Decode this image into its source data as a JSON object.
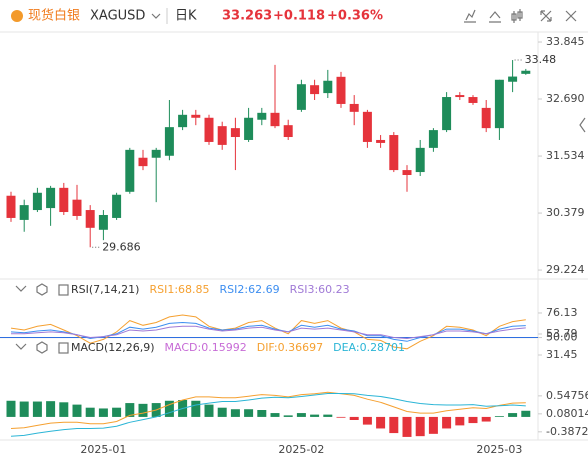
{
  "header": {
    "name": "现货白银",
    "symbol": "XAGUSD",
    "period": "日K",
    "change": "+0.118",
    "change_pct": "+0.36%"
  },
  "chart_data": [
    {
      "type": "candlestick",
      "up_color": "#1e8c5a",
      "down_color": "#e5333b",
      "categories": [
        null,
        null,
        null,
        null,
        null,
        null,
        null,
        "2025-01",
        null,
        null,
        null,
        null,
        null,
        null,
        null,
        null,
        null,
        null,
        null,
        null,
        null,
        null,
        "2025-02",
        null,
        null,
        null,
        null,
        null,
        null,
        null,
        null,
        null,
        null,
        null,
        null,
        null,
        null,
        "2025-03",
        null,
        null
      ],
      "open": [
        30.73,
        30.24,
        30.44,
        30.48,
        30.89,
        30.65,
        30.44,
        30.04,
        30.28,
        30.81,
        31.5,
        31.5,
        31.54,
        32.12,
        32.37,
        32.31,
        32.14,
        32.1,
        31.86,
        32.27,
        32.41,
        32.16,
        32.47,
        32.97,
        32.81,
        33.14,
        32.59,
        32.43,
        31.86,
        31.96,
        31.25,
        31.21,
        31.7,
        32.06,
        32.77,
        32.73,
        32.51,
        32.1,
        33.04,
        33.2
      ],
      "high": [
        30.81,
        30.65,
        30.89,
        30.93,
        30.99,
        30.95,
        30.54,
        30.44,
        30.79,
        31.7,
        31.66,
        31.7,
        32.67,
        32.47,
        32.47,
        32.37,
        32.23,
        32.31,
        32.51,
        32.51,
        33.383,
        32.27,
        33.08,
        33.08,
        33.28,
        33.24,
        32.77,
        32.47,
        31.96,
        32.02,
        31.35,
        31.86,
        32.1,
        32.83,
        32.83,
        32.77,
        32.67,
        33.08,
        33.48,
        33.3
      ],
      "low": [
        30.2,
        30.0,
        30.4,
        30.12,
        30.34,
        30.24,
        29.686,
        29.83,
        30.24,
        30.77,
        31.25,
        30.6,
        31.45,
        32.06,
        32.16,
        31.76,
        31.66,
        31.25,
        31.82,
        32.16,
        32.1,
        31.86,
        32.43,
        32.67,
        32.71,
        32.51,
        32.16,
        31.7,
        31.7,
        31.21,
        30.81,
        31.13,
        31.62,
        32.02,
        32.67,
        32.57,
        32.02,
        31.86,
        32.83,
        33.18
      ],
      "close": [
        30.28,
        30.54,
        30.79,
        30.89,
        30.4,
        30.32,
        30.08,
        30.34,
        30.75,
        31.66,
        31.33,
        31.66,
        32.12,
        32.37,
        32.31,
        31.82,
        31.76,
        31.92,
        32.31,
        32.41,
        32.14,
        31.92,
        32.99,
        32.79,
        33.06,
        32.59,
        32.43,
        31.82,
        31.8,
        31.25,
        31.15,
        31.7,
        32.06,
        32.73,
        32.73,
        32.61,
        32.1,
        33.08,
        33.145,
        33.263
      ],
      "ylim": [
        29.063,
        34.048
      ],
      "yticks": [
        33.845,
        {
          "value": 32.69,
          "label": "32.690"
        },
        31.534,
        30.379,
        29.224
      ]
    },
    {
      "type": "line",
      "title": "RSI(7,14,21)",
      "series": [
        {
          "name": "RSI1:68.85",
          "color": "#f5a030",
          "values": [
            60,
            58,
            62,
            64,
            58,
            52,
            44,
            48,
            56,
            68,
            63,
            66,
            72,
            74,
            72,
            62,
            58,
            60,
            66,
            68,
            60,
            54,
            68,
            65,
            68,
            60,
            56,
            48,
            47,
            40,
            38,
            46,
            52,
            62,
            61,
            58,
            52,
            62,
            67,
            68.85
          ]
        },
        {
          "name": "RSI2:62.69",
          "color": "#3d8ef0",
          "values": [
            56,
            55,
            57,
            58,
            56,
            53,
            49,
            51,
            54,
            61,
            59,
            61,
            65,
            66,
            65,
            60,
            58,
            59,
            62,
            63,
            59,
            56,
            63,
            61,
            63,
            59,
            57,
            52,
            52,
            48,
            46,
            50,
            53,
            59,
            59,
            57,
            54,
            59,
            62,
            62.69
          ]
        },
        {
          "name": "RSI3:60.23",
          "color": "#a07ad6",
          "values": [
            54,
            54,
            55,
            56,
            55,
            53,
            50,
            51,
            53,
            58,
            57,
            58,
            61,
            62,
            62,
            59,
            57,
            58,
            60,
            61,
            58,
            56,
            60,
            59,
            60,
            58,
            56,
            53,
            53,
            50,
            49,
            51,
            53,
            57,
            57,
            56,
            54,
            57,
            59,
            60.23
          ]
        }
      ],
      "reference_line": {
        "value": 50,
        "color": "#2f6fe0"
      },
      "ylim": [
        24,
        108
      ],
      "yticks": [
        76.13,
        53.79,
        {
          "value": 50,
          "label": "50.00"
        },
        31.45
      ]
    },
    {
      "type": "macd",
      "title": "MACD(12,26,9)",
      "up_color": "#1e8c5a",
      "down_color": "#e5333b",
      "series": [
        {
          "name": "MACD:0.15992",
          "style": "bar",
          "color": "#c76bd6",
          "values": [
            0.42,
            0.4,
            0.4,
            0.41,
            0.38,
            0.32,
            0.24,
            0.22,
            0.24,
            0.36,
            0.34,
            0.36,
            0.42,
            0.44,
            0.42,
            0.32,
            0.24,
            0.2,
            0.2,
            0.18,
            0.1,
            0.04,
            0.1,
            0.06,
            0.06,
            -0.02,
            -0.08,
            -0.2,
            -0.3,
            -0.42,
            -0.52,
            -0.5,
            -0.44,
            -0.3,
            -0.22,
            -0.16,
            -0.12,
            0.02,
            0.1,
            0.15992
          ]
        },
        {
          "name": "DIF:0.36697",
          "style": "line",
          "color": "#f5a030",
          "values": [
            -0.3,
            -0.28,
            -0.22,
            -0.16,
            -0.14,
            -0.14,
            -0.18,
            -0.18,
            -0.12,
            0.04,
            0.1,
            0.18,
            0.32,
            0.44,
            0.52,
            0.52,
            0.5,
            0.5,
            0.54,
            0.58,
            0.56,
            0.52,
            0.58,
            0.6,
            0.64,
            0.6,
            0.56,
            0.46,
            0.38,
            0.26,
            0.14,
            0.1,
            0.1,
            0.16,
            0.2,
            0.24,
            0.22,
            0.3,
            0.36,
            0.36697
          ]
        },
        {
          "name": "DEA:0.28701",
          "style": "line",
          "color": "#2bb5d6",
          "values": [
            -0.5,
            -0.48,
            -0.42,
            -0.37,
            -0.33,
            -0.3,
            -0.3,
            -0.29,
            -0.24,
            -0.14,
            -0.07,
            0.0,
            0.11,
            0.22,
            0.31,
            0.36,
            0.4,
            0.4,
            0.44,
            0.49,
            0.51,
            0.5,
            0.53,
            0.57,
            0.61,
            0.61,
            0.6,
            0.56,
            0.53,
            0.47,
            0.4,
            0.35,
            0.32,
            0.31,
            0.31,
            0.32,
            0.28,
            0.29,
            0.31,
            0.28701
          ]
        }
      ],
      "ylim": [
        -0.6,
        1.48
      ],
      "yticks": [
        0.54756,
        0.08014,
        -0.38729
      ]
    }
  ]
}
